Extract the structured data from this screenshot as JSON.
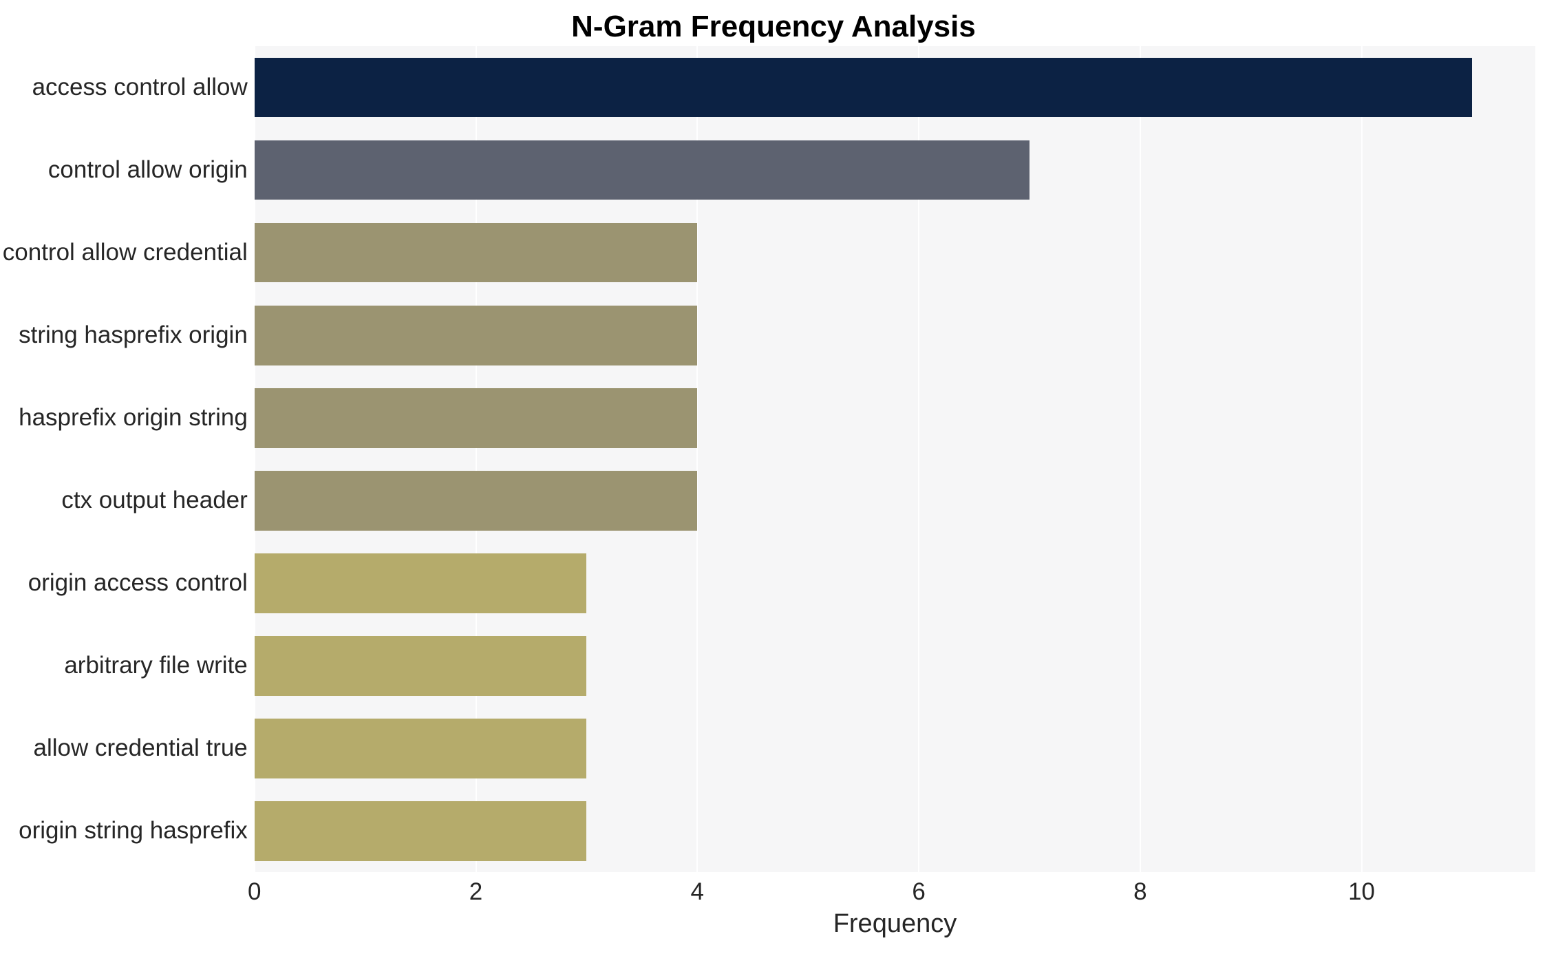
{
  "chart_data": {
    "type": "bar",
    "orientation": "horizontal",
    "title": "N-Gram Frequency Analysis",
    "xlabel": "Frequency",
    "ylabel": "",
    "categories": [
      "access control allow",
      "control allow origin",
      "control allow credential",
      "string hasprefix origin",
      "hasprefix origin string",
      "ctx output header",
      "origin access control",
      "arbitrary file write",
      "allow credential true",
      "origin string hasprefix"
    ],
    "values": [
      11,
      7,
      4,
      4,
      4,
      4,
      3,
      3,
      3,
      3
    ],
    "bar_colors": [
      "#0c2244",
      "#5d6270",
      "#9b9471",
      "#9b9471",
      "#9b9471",
      "#9b9471",
      "#b5ab6b",
      "#b5ab6b",
      "#b5ab6b",
      "#b5ab6b"
    ],
    "xlim": [
      0,
      11.57
    ],
    "xticks": [
      0,
      2,
      4,
      6,
      8,
      10
    ],
    "plot_background": "#f6f6f7",
    "grid": true,
    "legend": false
  }
}
